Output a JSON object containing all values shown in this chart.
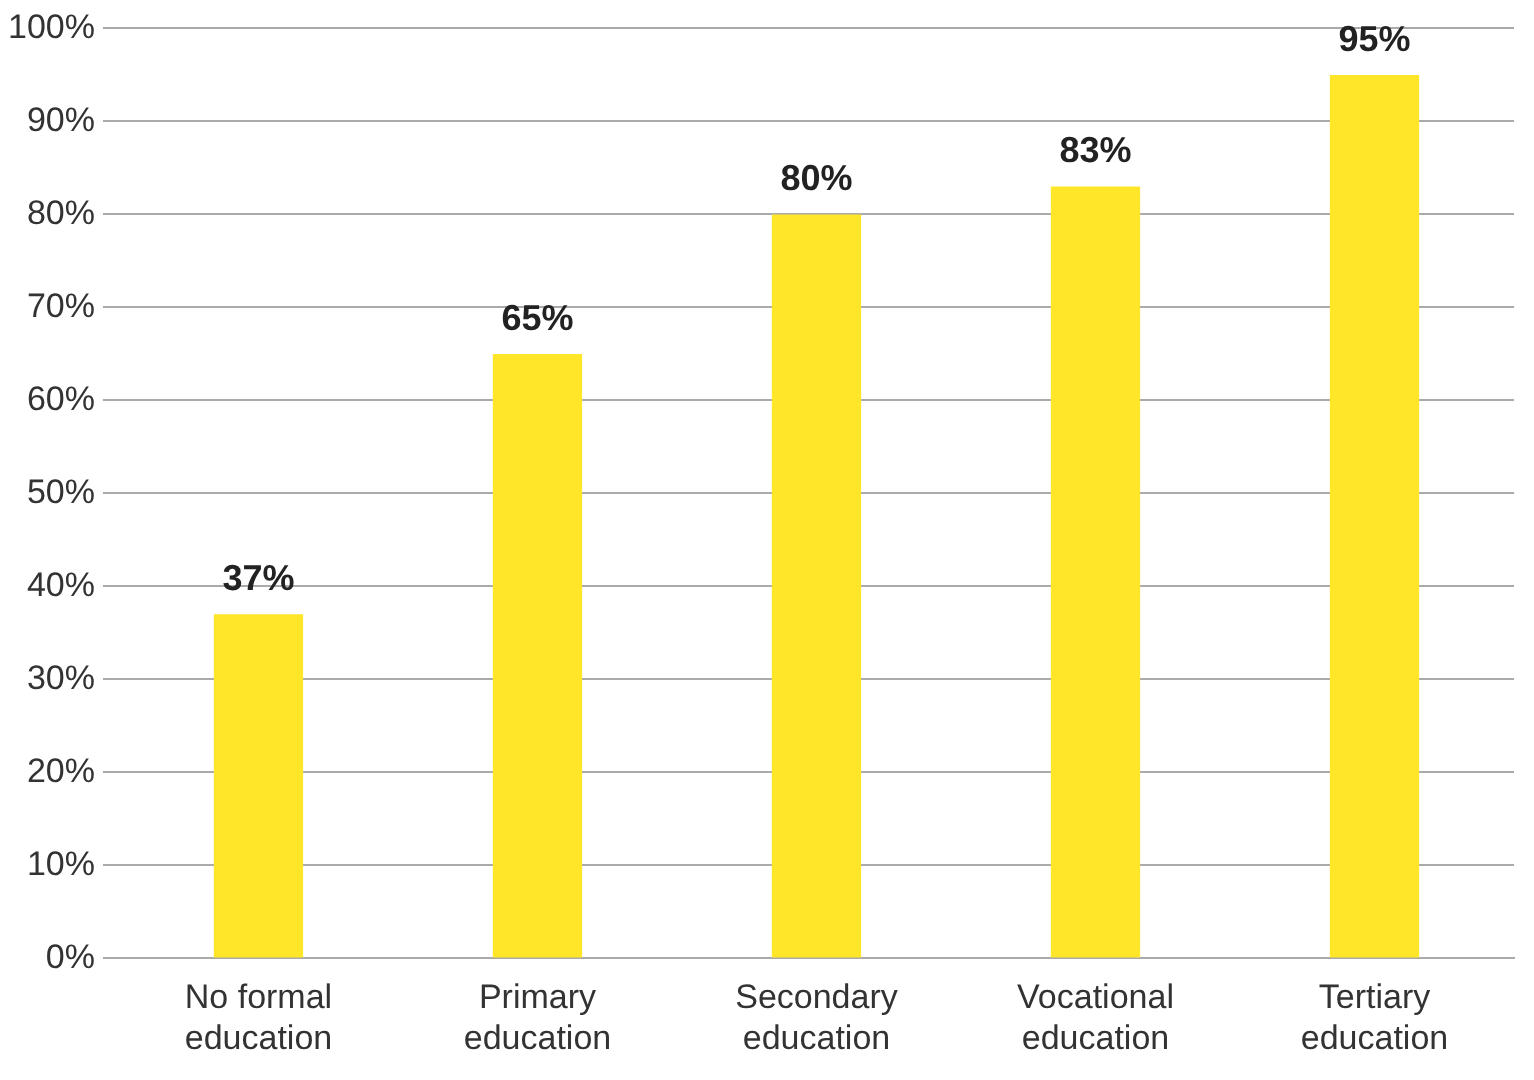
{
  "chart_data": {
    "type": "bar",
    "categories": [
      "No formal education",
      "Primary education",
      "Secondary education",
      "Vocational education",
      "Tertiary education"
    ],
    "values": [
      37,
      65,
      80,
      83,
      95
    ],
    "value_labels": [
      "37%",
      "65%",
      "80%",
      "83%",
      "95%"
    ],
    "color": "#ffe629",
    "ylim": [
      0,
      100
    ],
    "yticks": [
      {
        "value": 0,
        "label": "0%"
      },
      {
        "value": 10,
        "label": "10%"
      },
      {
        "value": 20,
        "label": "20%"
      },
      {
        "value": 30,
        "label": "30%"
      },
      {
        "value": 40,
        "label": "40%"
      },
      {
        "value": 50,
        "label": "50%"
      },
      {
        "value": 60,
        "label": "60%"
      },
      {
        "value": 70,
        "label": "70%"
      },
      {
        "value": 80,
        "label": "80%"
      },
      {
        "value": 90,
        "label": "90%"
      },
      {
        "value": 100,
        "label": "100%"
      }
    ],
    "grid": "y",
    "legend": false
  }
}
